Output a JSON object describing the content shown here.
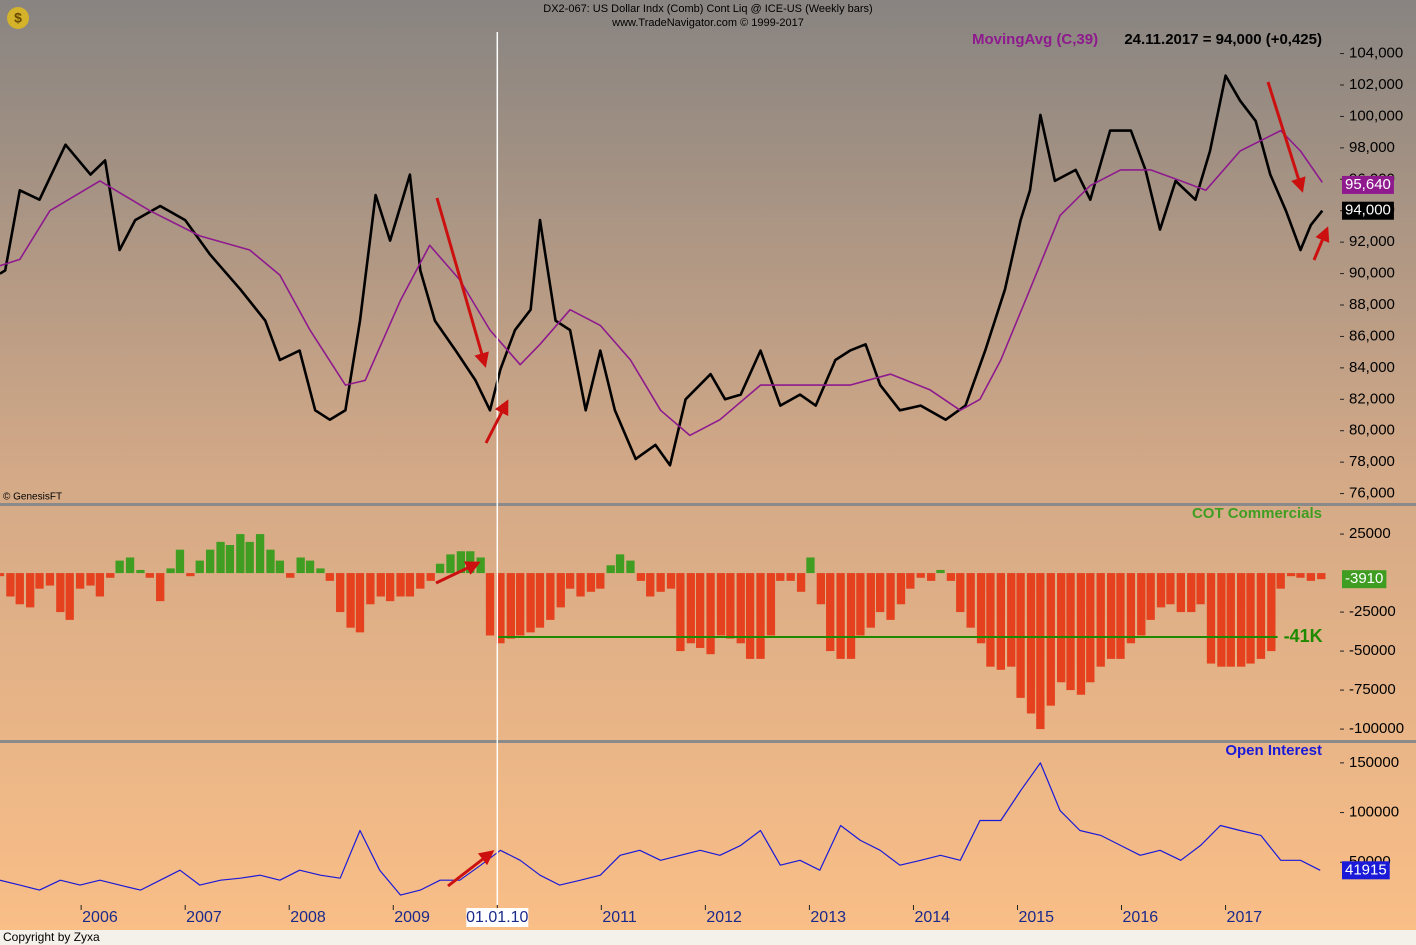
{
  "header": {
    "title": "DX2-067:  US Dollar Indx (Comb) Cont Liq @ ICE-US  (Weekly bars)",
    "subtitle": "www.TradeNavigator.com © 1999-2017",
    "copyright": "Copyright by Zyxa"
  },
  "chart_data": [
    {
      "type": "line",
      "source": "© GenesisFT",
      "status": "24.11.2017 = 94,000 (+0,425)",
      "xlim": [
        2005.22,
        2018.1
      ],
      "ylim": [
        75400,
        105500
      ],
      "yticks": [
        {
          "value": 76000,
          "label": "76,000"
        },
        {
          "value": 78000,
          "label": "78,000"
        },
        {
          "value": 80000,
          "label": "80,000"
        },
        {
          "value": 82000,
          "label": "82,000"
        },
        {
          "value": 84000,
          "label": "84,000"
        },
        {
          "value": 86000,
          "label": "86,000"
        },
        {
          "value": 88000,
          "label": "88,000"
        },
        {
          "value": 90000,
          "label": "90,000"
        },
        {
          "value": 92000,
          "label": "92,000"
        },
        {
          "value": 94000,
          "label": "94,000"
        },
        {
          "value": 96000,
          "label": "96,000"
        },
        {
          "value": 98000,
          "label": "98,000"
        },
        {
          "value": 100000,
          "label": "100,000"
        },
        {
          "value": 102000,
          "label": "102,000"
        },
        {
          "value": 104000,
          "label": "104,000"
        }
      ],
      "series": [
        {
          "color": "#000000",
          "width": 2.6,
          "x": [
            2005.22,
            2005.27,
            2005.41,
            2005.6,
            2005.85,
            2006.09,
            2006.23,
            2006.37,
            2006.52,
            2006.76,
            2007,
            2007.24,
            2007.53,
            2007.77,
            2007.91,
            2008.1,
            2008.25,
            2008.39,
            2008.54,
            2008.68,
            2008.83,
            2008.97,
            2009.16,
            2009.26,
            2009.4,
            2009.6,
            2009.79,
            2009.93,
            2010.03,
            2010.17,
            2010.32,
            2010.41,
            2010.56,
            2010.7,
            2010.85,
            2010.99,
            2011.13,
            2011.33,
            2011.52,
            2011.66,
            2011.81,
            2012.05,
            2012.19,
            2012.34,
            2012.53,
            2012.72,
            2012.91,
            2013.06,
            2013.25,
            2013.39,
            2013.54,
            2013.68,
            2013.87,
            2014.07,
            2014.31,
            2014.5,
            2014.69,
            2014.88,
            2015.03,
            2015.12,
            2015.22,
            2015.36,
            2015.56,
            2015.7,
            2015.89,
            2016.09,
            2016.23,
            2016.37,
            2016.52,
            2016.71,
            2016.85,
            2017,
            2017.14,
            2017.29,
            2017.43,
            2017.58,
            2017.72,
            2017.82,
            2017.93
          ],
          "values": [
            90000,
            90200,
            95300,
            94700,
            98200,
            96300,
            97200,
            91500,
            93400,
            94300,
            93400,
            91200,
            89000,
            87000,
            84500,
            85100,
            81300,
            80700,
            81300,
            87000,
            95000,
            92100,
            96300,
            90200,
            87000,
            85100,
            83200,
            81300,
            83900,
            86400,
            87700,
            93400,
            87000,
            86400,
            81300,
            85100,
            81300,
            78200,
            79100,
            77800,
            82000,
            83600,
            82000,
            82300,
            85100,
            81600,
            82300,
            81600,
            84500,
            85100,
            85500,
            82900,
            81300,
            81600,
            80700,
            81600,
            85100,
            89000,
            93400,
            95300,
            100100,
            95900,
            96600,
            94700,
            99100,
            99100,
            96600,
            92800,
            95900,
            94700,
            97800,
            102600,
            101000,
            99700,
            96300,
            94000,
            91500,
            93100,
            94000
          ],
          "current": {
            "value": 94000,
            "label": "94,000"
          }
        },
        {
          "name": "MovingAvg (C,39)",
          "color": "#8e1a8e",
          "width": 1.6,
          "x": [
            2005.22,
            2005.41,
            2005.7,
            2006.18,
            2006.66,
            2007.14,
            2007.62,
            2007.91,
            2008.2,
            2008.54,
            2008.73,
            2009.07,
            2009.35,
            2009.64,
            2009.93,
            2010.22,
            2010.41,
            2010.7,
            2010.99,
            2011.28,
            2011.57,
            2011.85,
            2012.14,
            2012.53,
            2012.91,
            2013.39,
            2013.78,
            2014.16,
            2014.45,
            2014.64,
            2014.84,
            2015.12,
            2015.41,
            2015.7,
            2015.99,
            2016.28,
            2016.57,
            2016.81,
            2017.14,
            2017.53,
            2017.72,
            2017.93
          ],
          "values": [
            90500,
            90900,
            94000,
            95900,
            94000,
            92400,
            91500,
            89900,
            86400,
            82900,
            83200,
            88300,
            91800,
            89600,
            86400,
            84200,
            85500,
            87700,
            86700,
            84500,
            81300,
            79700,
            80700,
            82900,
            82900,
            82900,
            83600,
            82600,
            81300,
            82000,
            84500,
            89000,
            93700,
            95600,
            96600,
            96600,
            95900,
            95300,
            97800,
            99100,
            97800,
            95800
          ],
          "current": {
            "value": 95640,
            "label": "95,640"
          }
        }
      ]
    },
    {
      "type": "bar",
      "title": "COT Commercials",
      "xlim": [
        2005.22,
        2018.1
      ],
      "ylim": [
        -107000,
        43000
      ],
      "yticks": [
        25000,
        -25000,
        -50000,
        -75000,
        -100000
      ],
      "colors": {
        "positive": "#3f9e22",
        "negative": "#e5411f"
      },
      "x": [
        2005.22,
        2005.32,
        2005.41,
        2005.51,
        2005.6,
        2005.7,
        2005.8,
        2005.89,
        2005.99,
        2006.09,
        2006.18,
        2006.28,
        2006.37,
        2006.47,
        2006.57,
        2006.66,
        2006.76,
        2006.86,
        2006.95,
        2007.05,
        2007.14,
        2007.24,
        2007.34,
        2007.43,
        2007.53,
        2007.62,
        2007.72,
        2007.82,
        2007.91,
        2008.01,
        2008.11,
        2008.2,
        2008.3,
        2008.39,
        2008.49,
        2008.59,
        2008.68,
        2008.78,
        2008.88,
        2008.97,
        2009.07,
        2009.16,
        2009.26,
        2009.36,
        2009.45,
        2009.55,
        2009.65,
        2009.74,
        2009.84,
        2009.93,
        2010.03,
        2010.13,
        2010.22,
        2010.32,
        2010.41,
        2010.51,
        2010.61,
        2010.7,
        2010.8,
        2010.9,
        2010.99,
        2011.09,
        2011.18,
        2011.28,
        2011.38,
        2011.47,
        2011.57,
        2011.67,
        2011.76,
        2011.86,
        2011.95,
        2012.05,
        2012.15,
        2012.24,
        2012.34,
        2012.43,
        2012.53,
        2012.63,
        2012.72,
        2012.82,
        2012.92,
        2013.01,
        2013.11,
        2013.2,
        2013.3,
        2013.4,
        2013.49,
        2013.59,
        2013.68,
        2013.78,
        2013.88,
        2013.97,
        2014.07,
        2014.17,
        2014.26,
        2014.36,
        2014.45,
        2014.55,
        2014.65,
        2014.74,
        2014.84,
        2014.94,
        2015.03,
        2015.13,
        2015.22,
        2015.32,
        2015.42,
        2015.51,
        2015.61,
        2015.7,
        2015.8,
        2015.9,
        2015.99,
        2016.09,
        2016.19,
        2016.28,
        2016.38,
        2016.47,
        2016.57,
        2016.67,
        2016.76,
        2016.86,
        2016.96,
        2017.05,
        2017.15,
        2017.24,
        2017.34,
        2017.44,
        2017.53,
        2017.63,
        2017.72,
        2017.82,
        2017.92
      ],
      "values": [
        -2000,
        -15000,
        -20000,
        -22000,
        -10000,
        -8000,
        -25000,
        -30000,
        -10000,
        -8000,
        -15000,
        -3000,
        8000,
        10000,
        2000,
        -3000,
        -18000,
        3000,
        15000,
        -2000,
        8000,
        15000,
        20000,
        18000,
        25000,
        20000,
        25000,
        15000,
        8000,
        -3000,
        10000,
        8000,
        3000,
        -5000,
        -25000,
        -35000,
        -38000,
        -20000,
        -15000,
        -18000,
        -15000,
        -15000,
        -10000,
        -5000,
        6000,
        12000,
        14000,
        14000,
        10000,
        -40000,
        -45000,
        -42000,
        -40000,
        -38000,
        -35000,
        -30000,
        -22000,
        -10000,
        -15000,
        -12000,
        -10000,
        5000,
        12000,
        8000,
        -5000,
        -15000,
        -12000,
        -10000,
        -50000,
        -45000,
        -48000,
        -52000,
        -40000,
        -42000,
        -45000,
        -55000,
        -55000,
        -40000,
        -5000,
        -5000,
        -12000,
        10000,
        -20000,
        -50000,
        -55000,
        -55000,
        -40000,
        -35000,
        -25000,
        -30000,
        -20000,
        -10000,
        -3000,
        -5000,
        2000,
        -5000,
        -25000,
        -35000,
        -45000,
        -60000,
        -62000,
        -60000,
        -80000,
        -90000,
        -100000,
        -85000,
        -70000,
        -75000,
        -78000,
        -70000,
        -60000,
        -55000,
        -55000,
        -45000,
        -40000,
        -30000,
        -22000,
        -20000,
        -25000,
        -25000,
        -20000,
        -58000,
        -60000,
        -60000,
        -60000,
        -58000,
        -55000,
        -50000,
        -10000,
        -2000,
        -3000,
        -5000,
        -3910
      ],
      "annotations": [
        {
          "text": "-41K",
          "value": -41000,
          "x": [
            2010,
            2017.5
          ],
          "color": "#1e8a00"
        }
      ]
    },
    {
      "type": "line",
      "title": "Open Interest",
      "color": "#1a1ad8",
      "xlim": [
        2005.22,
        2018.1
      ],
      "ylim": [
        7000,
        170000
      ],
      "yticks": [
        50000,
        100000,
        150000
      ],
      "xticks": [
        2006,
        2007,
        2008,
        2009,
        {
          "value": 2010,
          "label": "01.01.10"
        },
        2011,
        2012,
        2013,
        2014,
        2015,
        2016,
        2017
      ],
      "x": [
        2005.22,
        2005.41,
        2005.6,
        2005.8,
        2005.99,
        2006.18,
        2006.37,
        2006.57,
        2006.76,
        2006.95,
        2007.14,
        2007.34,
        2007.53,
        2007.72,
        2007.91,
        2008.1,
        2008.3,
        2008.49,
        2008.68,
        2008.87,
        2009.07,
        2009.26,
        2009.45,
        2009.64,
        2009.84,
        2010.03,
        2010.22,
        2010.41,
        2010.6,
        2010.8,
        2010.99,
        2011.18,
        2011.37,
        2011.57,
        2011.76,
        2011.95,
        2012.14,
        2012.34,
        2012.53,
        2012.72,
        2012.91,
        2013.1,
        2013.3,
        2013.49,
        2013.68,
        2013.87,
        2014.07,
        2014.26,
        2014.45,
        2014.64,
        2014.84,
        2015.03,
        2015.22,
        2015.41,
        2015.6,
        2015.8,
        2015.99,
        2016.18,
        2016.37,
        2016.57,
        2016.76,
        2016.95,
        2017.14,
        2017.34,
        2017.53,
        2017.72,
        2017.91
      ],
      "values": [
        32000,
        27000,
        22000,
        32000,
        27000,
        32000,
        27000,
        22000,
        32000,
        42000,
        27000,
        32000,
        34000,
        37000,
        32000,
        42000,
        37000,
        34000,
        82000,
        42000,
        17000,
        22000,
        32000,
        32000,
        47000,
        62000,
        52000,
        37000,
        27000,
        32000,
        37000,
        57000,
        62000,
        52000,
        57000,
        62000,
        57000,
        67000,
        82000,
        47000,
        52000,
        42000,
        87000,
        72000,
        62000,
        47000,
        52000,
        57000,
        52000,
        92000,
        92000,
        122000,
        150000,
        102000,
        82000,
        77000,
        67000,
        57000,
        62000,
        52000,
        67000,
        87000,
        82000,
        77000,
        52000,
        52000,
        41915
      ]
    }
  ]
}
